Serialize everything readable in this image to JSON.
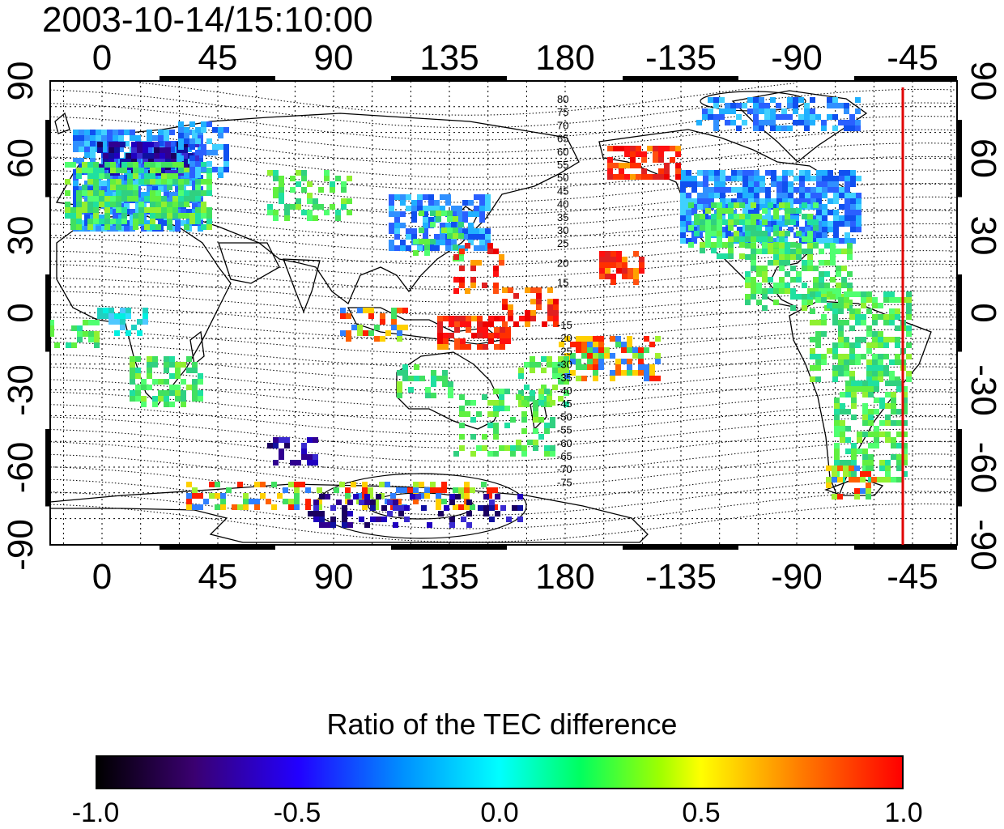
{
  "title": "2003-10-14/15:10:00",
  "colorbar": {
    "title": "Ratio of the TEC difference",
    "ticks": [
      "-1.0",
      "-0.5",
      "0.0",
      "0.5",
      "1.0"
    ],
    "colors": [
      "#000000",
      "#3a0070",
      "#2200ff",
      "#0090ff",
      "#00ffff",
      "#00ff60",
      "#a0ff00",
      "#ffff00",
      "#ff8000",
      "#ff0000"
    ]
  },
  "map": {
    "lon_ticks": [
      "0",
      "45",
      "90",
      "135",
      "180",
      "-135",
      "-90",
      "-45"
    ],
    "lat_ticks": [
      "90",
      "60",
      "30",
      "0",
      "-30",
      "-60",
      "-90"
    ],
    "contour_labels_north": [
      "80",
      "75",
      "70",
      "65",
      "60",
      "55",
      "50",
      "45",
      "40",
      "35",
      "30",
      "25",
      "20",
      "15"
    ],
    "contour_labels_south": [
      "-15",
      "-20",
      "-25",
      "-30",
      "-35",
      "-40",
      "-45",
      "-50",
      "-55",
      "-60",
      "-65",
      "-70",
      "-75"
    ],
    "marker_line": {
      "lon": -45,
      "color": "#e00000"
    }
  }
}
